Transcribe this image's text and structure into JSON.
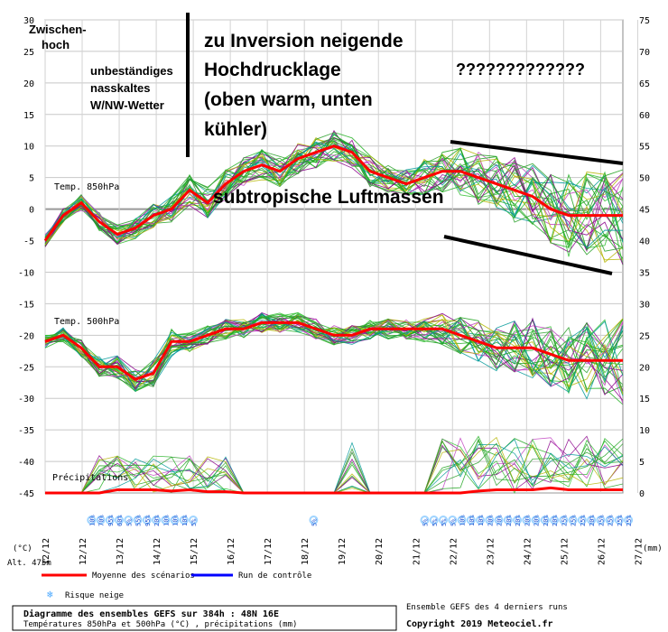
{
  "chart_data": {
    "type": "line",
    "title": "Diagramme des ensembles GEFS sur 384h : 48N 16E",
    "subtitle": "Températures 850hPa et 500hPa (°C) , précipitations (mm)",
    "x_ticks": [
      "12/12",
      "12/12",
      "13/12",
      "14/12",
      "15/12",
      "16/12",
      "17/12",
      "18/12",
      "19/12",
      "20/12",
      "21/12",
      "22/12",
      "23/12",
      "24/12",
      "25/12",
      "26/12",
      "27/12"
    ],
    "y_left_ticks": [
      "30",
      "25",
      "20",
      "15",
      "10",
      "5",
      "0",
      "-5",
      "-10",
      "-15",
      "-20",
      "-25",
      "-30",
      "-35",
      "-40",
      "-45"
    ],
    "y_right_ticks": [
      "75",
      "70",
      "65",
      "60",
      "55",
      "50",
      "45",
      "40",
      "35",
      "30",
      "25",
      "20",
      "15",
      "10",
      "5",
      "0"
    ],
    "ylim_left": [
      -45,
      30
    ],
    "ylim_right": [
      0,
      75
    ],
    "y_left_unit": "(°C)",
    "y_right_unit": "(mm)",
    "altitude": "Alt. 475m",
    "inline_labels": {
      "t850": "Temp. 850hPa",
      "t500": "Temp. 500hPa",
      "precip": "Précipitations"
    },
    "series": [
      {
        "name": "Moyenne des scénarios",
        "color": "#ff0000",
        "t850": [
          -5,
          -1,
          1,
          -2,
          -4,
          -3,
          -1,
          0,
          3,
          1,
          4,
          6,
          7,
          6,
          8,
          9,
          10,
          9,
          6,
          5,
          4,
          5,
          6,
          6,
          5,
          4,
          3,
          2,
          0,
          -1,
          -1,
          -1,
          -1
        ],
        "t500": [
          -21,
          -20,
          -22,
          -25,
          -25,
          -27,
          -26,
          -21,
          -21,
          -20,
          -19,
          -19,
          -18,
          -18,
          -18,
          -19,
          -20,
          -20,
          -19,
          -19,
          -19,
          -19,
          -19,
          -20,
          -21,
          -22,
          -22,
          -22,
          -23,
          -24,
          -24,
          -24,
          -24
        ]
      },
      {
        "name": "Run de contrôle",
        "color": "#0000ff"
      }
    ],
    "precip_mean": [
      0,
      0,
      0,
      0,
      0.5,
      0.5,
      0.5,
      0.3,
      0.5,
      0.2,
      0.2,
      0,
      0,
      0,
      0,
      0,
      0,
      0,
      0,
      0,
      0,
      0,
      0,
      0,
      0.3,
      0.5,
      0.5,
      0.5,
      0.8,
      0.5,
      0.5,
      0.5,
      0.5
    ],
    "snow_risk": [
      {
        "day": 1.25,
        "pct": "10%"
      },
      {
        "day": 1.5,
        "pct": "70%"
      },
      {
        "day": 1.75,
        "pct": "95%"
      },
      {
        "day": 2.0,
        "pct": "60%"
      },
      {
        "day": 2.25,
        "pct": "5%"
      },
      {
        "day": 2.5,
        "pct": "55%"
      },
      {
        "day": 2.75,
        "pct": "95%"
      },
      {
        "day": 3.0,
        "pct": "20%"
      },
      {
        "day": 3.25,
        "pct": "10%"
      },
      {
        "day": 3.5,
        "pct": "10%"
      },
      {
        "day": 3.75,
        "pct": "10%"
      },
      {
        "day": 4.0,
        "pct": "5%"
      },
      {
        "day": 7.25,
        "pct": "5%"
      },
      {
        "day": 10.25,
        "pct": "5%"
      },
      {
        "day": 10.5,
        "pct": "5%"
      },
      {
        "day": 10.75,
        "pct": "5%"
      },
      {
        "day": 11.0,
        "pct": "5%"
      },
      {
        "day": 11.25,
        "pct": "10%"
      },
      {
        "day": 11.5,
        "pct": "10%"
      },
      {
        "day": 11.75,
        "pct": "10%"
      },
      {
        "day": 12.0,
        "pct": "20%"
      },
      {
        "day": 12.25,
        "pct": "20%"
      },
      {
        "day": 12.5,
        "pct": "20%"
      },
      {
        "day": 12.75,
        "pct": "20%"
      },
      {
        "day": 13.0,
        "pct": "20%"
      },
      {
        "day": 13.25,
        "pct": "20%"
      },
      {
        "day": 13.5,
        "pct": "20%"
      },
      {
        "day": 13.75,
        "pct": "20%"
      },
      {
        "day": 14.0,
        "pct": "25%"
      },
      {
        "day": 14.25,
        "pct": "25%"
      },
      {
        "day": 14.5,
        "pct": "25%"
      },
      {
        "day": 14.75,
        "pct": "20%"
      },
      {
        "day": 15.0,
        "pct": "25%"
      },
      {
        "day": 15.25,
        "pct": "25%"
      },
      {
        "day": 15.5,
        "pct": "25%"
      },
      {
        "day": 15.75,
        "pct": "25%"
      }
    ],
    "ensemble_colors": [
      "#16a016",
      "#22b022",
      "#8b008b",
      "#b5b500",
      "#009999",
      "#2aa02a",
      "#c040c0",
      "#30c030"
    ],
    "grid": true,
    "legend_placement": "bottom"
  },
  "legend": {
    "mean_label": "Moyenne des scénarios",
    "control_label": "Run de contrôle",
    "snow_label": "Risque neige"
  },
  "footer": {
    "title": "Diagramme des ensembles GEFS sur 384h : 48N 16E",
    "subtitle": "Températures 850hPa et 500hPa (°C) , précipitations (mm)",
    "runs_note": "Ensemble GEFS des 4 derniers runs",
    "copyright": "Copyright 2019 Meteociel.fr"
  },
  "annotations": {
    "zwischen_line1": "Zwischen-",
    "zwischen_line2": "hoch",
    "unb_line1": "unbeständiges",
    "unb_line2": "nasskaltes",
    "unb_line3": "W/NW-Wetter",
    "big_line1": "zu Inversion neigende",
    "big_line2": "Hochdrucklage",
    "big_line3": "(oben warm, unten",
    "big_line4": "kühler)",
    "subtrop": "subtropische Luftmassen",
    "question": "?????????????"
  },
  "colors": {
    "mean": "#ff0000",
    "control": "#0000ff",
    "snow": "#4aa8ff",
    "grid": "#c8c8c8",
    "annotation_lines": "#000000"
  }
}
